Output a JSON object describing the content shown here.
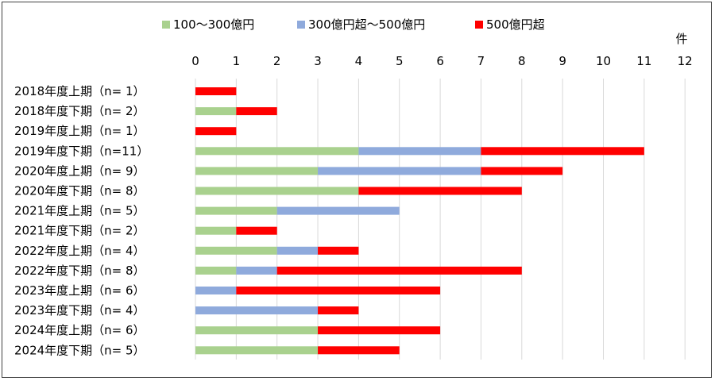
{
  "chart_data": {
    "type": "bar",
    "orientation": "horizontal",
    "stacked": true,
    "categories": [
      "2018年度上期（n=  1）",
      "2018年度下期（n=  2）",
      "2019年度上期（n=  1）",
      "2019年度下期（n=11）",
      "2020年度上期（n=  9）",
      "2020年度下期（n=  8）",
      "2021年度上期（n=  5）",
      "2021年度下期（n=  2）",
      "2022年度上期（n=  4）",
      "2022年度下期（n=  8）",
      "2023年度上期（n=  6）",
      "2023年度下期（n=  4）",
      "2024年度上期（n=  6）",
      "2024年度下期（n=  5）"
    ],
    "series": [
      {
        "name": "100～300億円",
        "color": "#a9d18e",
        "values": [
          0,
          1,
          0,
          4,
          3,
          4,
          2,
          1,
          2,
          1,
          0,
          0,
          3,
          3
        ]
      },
      {
        "name": "300億円超～500億円",
        "color": "#8faadc",
        "values": [
          0,
          0,
          0,
          3,
          4,
          0,
          3,
          0,
          1,
          1,
          1,
          3,
          0,
          0
        ]
      },
      {
        "name": "500億円超",
        "color": "#ff0000",
        "values": [
          1,
          1,
          1,
          4,
          2,
          4,
          0,
          1,
          1,
          6,
          5,
          1,
          3,
          2
        ]
      }
    ],
    "xlim": [
      0,
      12
    ],
    "xticks": [
      "0",
      "1",
      "2",
      "3",
      "4",
      "5",
      "6",
      "7",
      "8",
      "9",
      "10",
      "11",
      "12"
    ],
    "unit_label": "件",
    "grid": true,
    "legend_position": "top"
  }
}
